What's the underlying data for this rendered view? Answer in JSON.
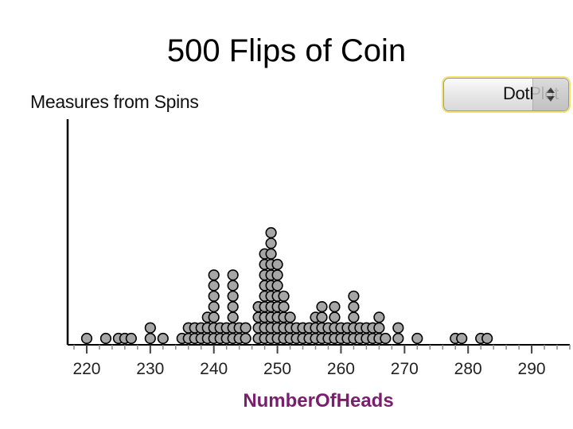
{
  "title": "500 Flips of Coin",
  "subtitle": "Measures from Spins",
  "plot_menu": {
    "label": "DotPlot"
  },
  "chart_data": {
    "type": "dotplot",
    "title": "500 Flips of Coin",
    "xlabel": "NumberOfHeads",
    "xlim": [
      217,
      296
    ],
    "xticks": [
      220,
      230,
      240,
      250,
      260,
      270,
      280,
      290
    ],
    "grid": false,
    "values": [
      220,
      223,
      225,
      226,
      227,
      230,
      230,
      232,
      235,
      236,
      236,
      237,
      237,
      238,
      238,
      239,
      239,
      239,
      240,
      240,
      240,
      240,
      240,
      240,
      240,
      241,
      241,
      242,
      242,
      243,
      243,
      243,
      243,
      243,
      243,
      243,
      244,
      244,
      245,
      245,
      247,
      247,
      247,
      247,
      248,
      248,
      248,
      248,
      248,
      248,
      248,
      248,
      248,
      249,
      249,
      249,
      249,
      249,
      249,
      249,
      249,
      249,
      249,
      249,
      250,
      250,
      250,
      250,
      250,
      250,
      250,
      250,
      251,
      251,
      251,
      251,
      251,
      252,
      252,
      252,
      253,
      253,
      254,
      254,
      255,
      255,
      256,
      256,
      256,
      257,
      257,
      257,
      257,
      258,
      258,
      259,
      259,
      259,
      259,
      260,
      260,
      261,
      261,
      262,
      262,
      262,
      262,
      262,
      263,
      263,
      264,
      264,
      265,
      265,
      266,
      266,
      266,
      267,
      269,
      269,
      272,
      278,
      279,
      282,
      283
    ]
  }
}
